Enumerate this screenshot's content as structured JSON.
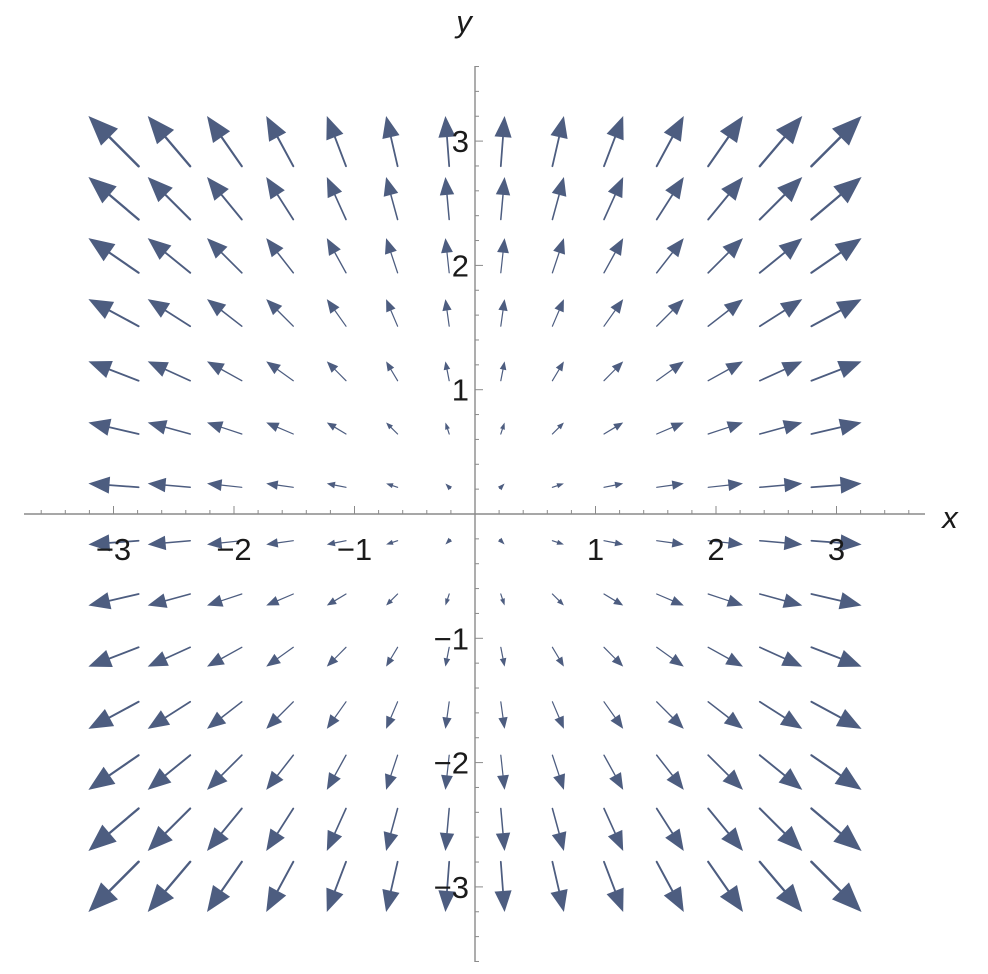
{
  "chart_data": {
    "type": "vector_field",
    "title": "",
    "xlabel": "x",
    "ylabel": "y",
    "xlim": [
      -3.75,
      3.75
    ],
    "ylim": [
      -3.75,
      3.75
    ],
    "x_ticks": [
      -3,
      -2,
      -1,
      1,
      2,
      3
    ],
    "y_ticks": [
      -3,
      -2,
      -1,
      1,
      2,
      3
    ],
    "x_tick_labels": [
      "−3",
      "−2",
      "−1",
      "1",
      "2",
      "3"
    ],
    "y_tick_labels": [
      "−3",
      "−2",
      "−1",
      "1",
      "2",
      "3"
    ],
    "grid": false,
    "field": {
      "u": "x",
      "v": "y"
    },
    "sample_x": [
      -3.0,
      -2.54,
      -2.08,
      -1.62,
      -1.15,
      -0.69,
      -0.23,
      0.23,
      0.69,
      1.15,
      1.62,
      2.08,
      2.54,
      3.0
    ],
    "sample_y": [
      -3.0,
      -2.54,
      -2.08,
      -1.62,
      -1.15,
      -0.69,
      -0.23,
      0.23,
      0.69,
      1.15,
      1.62,
      2.08,
      2.54,
      3.0
    ],
    "arrow_color": "#4d5d80",
    "axis_color": "#8a8a8a"
  }
}
